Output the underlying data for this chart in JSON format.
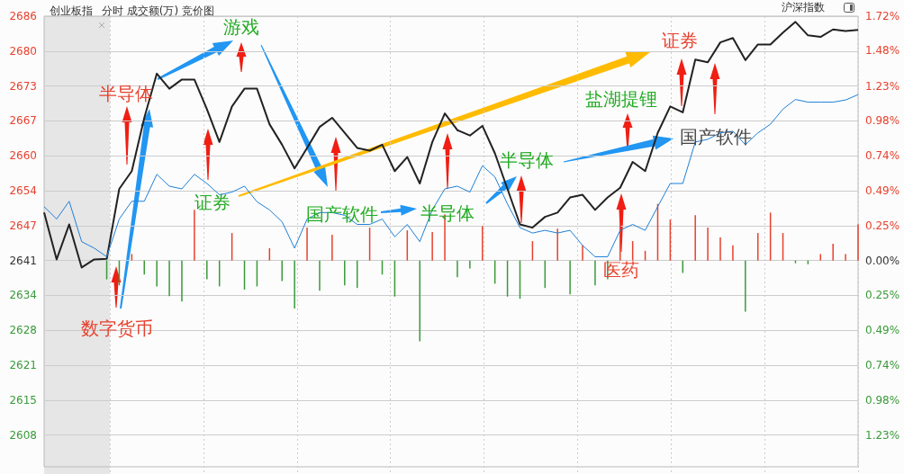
{
  "chart_data": {
    "type": "line",
    "title": "创业板指",
    "subtitle": "分时 成交额(万) 竞价图",
    "annotations": [
      "数字货币",
      "半导体",
      "游戏",
      "证券",
      "国产软件",
      "半导体",
      "半导体",
      "盐湖提锂",
      "国产软件",
      "医药",
      "证券",
      "沪深指数"
    ],
    "categories": [
      null,
      null,
      null,
      null,
      null,
      null,
      null,
      null,
      null,
      null,
      null,
      null,
      null,
      null,
      null,
      null,
      null,
      null,
      null,
      null,
      null,
      null,
      null,
      null,
      null,
      null,
      null,
      null,
      null,
      null,
      null,
      null,
      null,
      null,
      null,
      null,
      null,
      null,
      null,
      null,
      null,
      null,
      null,
      null,
      null,
      null,
      null,
      null,
      null,
      null,
      null,
      null,
      null,
      null,
      null,
      null,
      null,
      null,
      null,
      null,
      null,
      null,
      null,
      null,
      null,
      null
    ],
    "series": [
      {
        "color": "#222222",
        "values": [
          2649.7,
          2641.0,
          2647.5,
          2639.5,
          2641.0,
          2641.1,
          2654.1,
          2657.4,
          2667.3,
          2675.5,
          2672.7,
          2674.4,
          2674.4,
          2668.9,
          2662.8,
          2669.4,
          2672.7,
          2672.7,
          2666.1,
          2662.3,
          2657.9,
          2661.7,
          2665.6,
          2667.3,
          2664.5,
          2661.7,
          2661.2,
          2662.3,
          2657.4,
          2660.0,
          2655.1,
          2662.8,
          2668.1,
          2665.0,
          2664.0,
          2665.8,
          2660.7,
          2654.1,
          2647.5,
          2646.9,
          2648.9,
          2649.7,
          2652.5,
          2653.0,
          2650.2,
          2652.5,
          2654.3,
          2659.1,
          2657.4,
          2664.5,
          2669.4,
          2668.3,
          2678.1,
          2677.6,
          2681.3,
          2682.1,
          2678.0,
          2680.9,
          2680.9,
          2683.1,
          2685.1,
          2682.6,
          2682.3,
          2683.7,
          2683.4,
          2683.6
        ]
      },
      {
        "color": "#1e7fd8",
        "values": [
          2650.8,
          2648.5,
          2651.8,
          2644.3,
          2643.1,
          2641.5,
          2648.5,
          2651.8,
          2651.8,
          2656.8,
          2654.6,
          2654.1,
          2656.8,
          2655.1,
          2653.0,
          2653.5,
          2654.6,
          2651.7,
          2650.2,
          2648.0,
          2643.1,
          2648.5,
          2649.7,
          2649.7,
          2649.2,
          2647.5,
          2647.5,
          2648.5,
          2645.2,
          2647.5,
          2644.3,
          2650.2,
          2654.1,
          2654.6,
          2653.5,
          2658.4,
          2656.3,
          2651.3,
          2646.9,
          2645.9,
          2646.4,
          2645.9,
          2646.4,
          2643.6,
          2641.5,
          2641.5,
          2646.4,
          2647.5,
          2646.4,
          2650.8,
          2655.1,
          2655.1,
          2662.8,
          2663.3,
          2664.5,
          2664.8,
          2662.3,
          2664.5,
          2666.1,
          2668.9,
          2670.7,
          2670.2,
          2670.2,
          2670.2,
          2670.6,
          2671.6
        ]
      },
      {
        "type": "bar",
        "values": [
          null,
          null,
          null,
          null,
          null,
          -3.5,
          -4.6,
          1.2,
          -2.6,
          -4.8,
          -6.6,
          -7.6,
          9.4,
          -3.5,
          -4.8,
          5.1,
          -5.4,
          -4.8,
          2.3,
          -3.8,
          -8.9,
          6.1,
          -5.6,
          4.8,
          -4.6,
          -5.1,
          6.1,
          -2.6,
          -6.7,
          5.6,
          -15.0,
          5.3,
          8.6,
          -3.1,
          -1.5,
          6.4,
          -4.3,
          -6.7,
          -7.1,
          3.6,
          -5.1,
          5.9,
          -6.3,
          2.8,
          -4.6,
          -3.5,
          6.9,
          3.6,
          1.8,
          10.5,
          7.6,
          -2.3,
          8.4,
          6.1,
          4.3,
          2.8,
          -9.5,
          5.1,
          8.9,
          5.1,
          -0.5,
          -0.7,
          1.2,
          3.1,
          1.2,
          6.7
        ],
        "base": [
          null,
          null,
          null,
          null,
          null,
          2640.8,
          2640.8,
          2640.8,
          2640.8,
          2640.8,
          2640.8,
          2640.8,
          2640.8,
          2640.8,
          2640.8,
          2640.8,
          2640.8,
          2640.8,
          2640.8,
          2640.8,
          2640.8,
          2640.8,
          2640.8,
          2640.8,
          2640.8,
          2640.8,
          2640.8,
          2640.8,
          2640.8,
          2640.8,
          2640.8,
          2640.8,
          2640.8,
          2640.8,
          2640.8,
          2640.8,
          2640.8,
          2640.8,
          2640.8,
          2640.8,
          2640.8,
          2640.8,
          2640.8,
          2640.8,
          2640.8,
          2640.8,
          2640.8,
          2640.8,
          2640.8,
          2640.8,
          2640.8,
          2640.8,
          2640.8,
          2640.8,
          2640.8,
          2640.8,
          2640.8,
          2640.8,
          2640.8,
          2640.8,
          2640.8,
          2640.8,
          2640.8,
          2640.8,
          2640.8,
          2640.8
        ],
        "colors": [
          null,
          null,
          null,
          null,
          null,
          "#3a9a3a",
          "#3a9a3a",
          "#e8412e",
          "#3a9a3a",
          "#3a9a3a",
          "#3a9a3a",
          "#3a9a3a",
          "#e8412e",
          "#3a9a3a",
          "#3a9a3a",
          "#e8412e",
          "#3a9a3a",
          "#3a9a3a",
          "#e8412e",
          "#3a9a3a",
          "#3a9a3a",
          "#e8412e",
          "#3a9a3a",
          "#e8412e",
          "#3a9a3a",
          "#3a9a3a",
          "#e8412e",
          "#3a9a3a",
          "#3a9a3a",
          "#e8412e",
          "#3a9a3a",
          "#e8412e",
          "#e8412e",
          "#3a9a3a",
          "#3a9a3a",
          "#e8412e",
          "#3a9a3a",
          "#3a9a3a",
          "#3a9a3a",
          "#e8412e",
          "#3a9a3a",
          "#e8412e",
          "#3a9a3a",
          "#e8412e",
          "#3a9a3a",
          "#3a9a3a",
          "#e8412e",
          "#e8412e",
          "#e8412e",
          "#e8412e",
          "#e8412e",
          "#3a9a3a",
          "#e8412e",
          "#e8412e",
          "#e8412e",
          "#e8412e",
          "#3a9a3a",
          "#e8412e",
          "#e8412e",
          "#e8412e",
          "#3a9a3a",
          "#3a9a3a",
          "#e8412e",
          "#e8412e",
          "#e8412e",
          "#e8412e"
        ]
      }
    ],
    "ylim": [
      2602.5,
      2686.16
    ],
    "yticks": [
      {
        "value": 2608.4,
        "label": "2608"
      },
      {
        "value": 2614.88,
        "label": "2615"
      },
      {
        "value": 2621.36,
        "label": "2621"
      },
      {
        "value": 2627.84,
        "label": "2628"
      },
      {
        "value": 2634.32,
        "label": "2634"
      },
      {
        "value": 2640.8,
        "label": "2641"
      },
      {
        "value": 2647.28,
        "label": "2647"
      },
      {
        "value": 2653.76,
        "label": "2654"
      },
      {
        "value": 2660.24,
        "label": "2660"
      },
      {
        "value": 2666.72,
        "label": "2667"
      },
      {
        "value": 2673.2,
        "label": "2673"
      },
      {
        "value": 2679.68,
        "label": "2680"
      },
      {
        "value": 2686.16,
        "label": "2686"
      }
    ],
    "y2lim": [
      -1.45,
      1.718
    ],
    "y2ticks": [
      {
        "value": -1.227,
        "label": "1.23%"
      },
      {
        "value": -0.982,
        "label": "0.98%"
      },
      {
        "value": -0.736,
        "label": "0.74%"
      },
      {
        "value": -0.491,
        "label": "0.49%"
      },
      {
        "value": -0.245,
        "label": "0.25%"
      },
      {
        "value": 0,
        "label": "0.00%"
      },
      {
        "value": 0.245,
        "label": "0.25%"
      },
      {
        "value": 0.491,
        "label": "0.49%"
      },
      {
        "value": 0.736,
        "label": "0.74%"
      },
      {
        "value": 0.982,
        "label": "0.98%"
      },
      {
        "value": 1.227,
        "label": "1.23%"
      },
      {
        "value": 1.475,
        "label": "1.48%"
      },
      {
        "value": 1.718,
        "label": "1.72%"
      }
    ],
    "grid": true,
    "marker": "none"
  }
}
